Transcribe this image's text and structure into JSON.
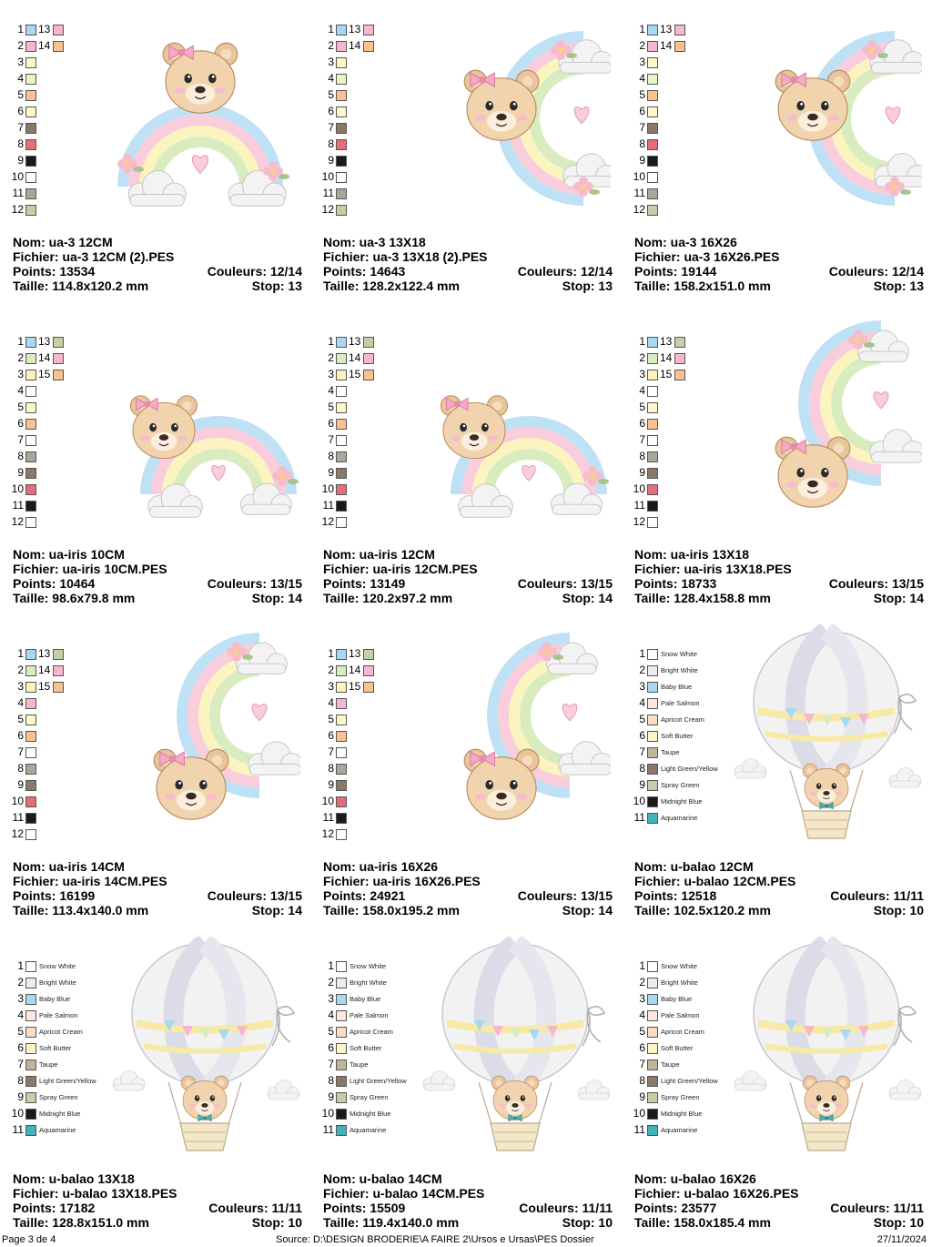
{
  "palettes": {
    "rainbow3": [
      "#a9d8f2",
      "#f4b7cf",
      "#fdf9c6",
      "#eaf5c5",
      "#f8c18e",
      "#fdf8c9",
      "#8b7867",
      "#e56c78",
      "#1a1a1a",
      "#ffffff",
      "#a8a89a",
      "#c2cfa7"
    ],
    "rainbow3_right": [
      "#f4b7cf",
      "#f8c18e"
    ],
    "iris_a": [
      "#a9d8f2",
      "#d8ecc0",
      "#fdf2b9",
      "#ffffff",
      "#fdf8c9",
      "#f8c18e",
      "#ffffff",
      "#a8a89a",
      "#8b7867",
      "#e56c78",
      "#1a1a1a",
      "#ffffff"
    ],
    "iris_a_right": [
      "#c2cfa7",
      "#f4b7cf",
      "#f8c18e"
    ],
    "iris_b": [
      "#a9d8f2",
      "#d8ecc0",
      "#fdf2b9",
      "#f4b7cf",
      "#fdf8c9",
      "#f8c18e",
      "#ffffff",
      "#a8a89a",
      "#8b7867",
      "#e56c78",
      "#1a1a1a",
      "#ffffff"
    ],
    "iris_b_right": [
      "#c2cfa7",
      "#f4b7cf",
      "#f8c18e"
    ],
    "balao": [
      "#ffffff",
      "#ecebf4",
      "#a9d8f2",
      "#fde6de",
      "#fbdcc4",
      "#fdf4c6",
      "#c2b39b",
      "#8b7867",
      "#c2cfa7",
      "#1a1a1a",
      "#3fb3b5"
    ]
  },
  "balao_names": [
    "Snow White",
    "Bright White",
    "Baby Blue",
    "Pale Salmon",
    "Apricot Cream",
    "Soft Butter",
    "Taupe",
    "Light Green/Yellow",
    "Spray Green",
    "Midnight Blue",
    "Aquamarine"
  ],
  "designs": [
    {
      "nom_line": "Nom: ua-3 12CM",
      "fichier_line": "Fichier: ua-3 12CM (2).PES",
      "points_line": "Points: 13534",
      "couleurs_line": "Couleurs: 12/14",
      "taille_line": "Taille: 114.8x120.2 mm",
      "stop_line": "Stop: 13",
      "art": "rainbow-bear-top",
      "palette": "rainbow3",
      "right": "rainbow3_right",
      "right_start": 13
    },
    {
      "nom_line": "Nom: ua-3 13X18",
      "fichier_line": "Fichier: ua-3 13X18 (2).PES",
      "points_line": "Points: 14643",
      "couleurs_line": "Couleurs: 12/14",
      "taille_line": "Taille: 128.2x122.4 mm",
      "stop_line": "Stop: 13",
      "art": "rainbow-bear-side",
      "palette": "rainbow3",
      "right": "rainbow3_right",
      "right_start": 13
    },
    {
      "nom_line": "Nom: ua-3 16X26",
      "fichier_line": "Fichier: ua-3 16X26.PES",
      "points_line": "Points: 19144",
      "couleurs_line": "Couleurs: 12/14",
      "taille_line": "Taille: 158.2x151.0 mm",
      "stop_line": "Stop: 13",
      "art": "rainbow-bear-side",
      "palette": "rainbow3",
      "right": "rainbow3_right",
      "right_start": 13
    },
    {
      "nom_line": "Nom: ua-iris 10CM",
      "fichier_line": "Fichier: ua-iris 10CM.PES",
      "points_line": "Points: 10464",
      "couleurs_line": "Couleurs: 13/15",
      "taille_line": "Taille: 98.6x79.8 mm",
      "stop_line": "Stop: 14",
      "art": "rainbow-bear-left",
      "palette": "iris_a",
      "right": "iris_a_right",
      "right_start": 13
    },
    {
      "nom_line": "Nom: ua-iris 12CM",
      "fichier_line": "Fichier: ua-iris 12CM.PES",
      "points_line": "Points: 13149",
      "couleurs_line": "Couleurs: 13/15",
      "taille_line": "Taille: 120.2x97.2 mm",
      "stop_line": "Stop: 14",
      "art": "rainbow-bear-left",
      "palette": "iris_a",
      "right": "iris_a_right",
      "right_start": 13
    },
    {
      "nom_line": "Nom: ua-iris 13X18",
      "fichier_line": "Fichier: ua-iris 13X18.PES",
      "points_line": "Points: 18733",
      "couleurs_line": "Couleurs: 13/15",
      "taille_line": "Taille: 128.4x158.8 mm",
      "stop_line": "Stop: 14",
      "art": "rainbow-bear-bottom",
      "palette": "iris_a",
      "right": "iris_a_right",
      "right_start": 13
    },
    {
      "nom_line": "Nom: ua-iris 14CM",
      "fichier_line": "Fichier: ua-iris 14CM.PES",
      "points_line": "Points: 16199",
      "couleurs_line": "Couleurs: 13/15",
      "taille_line": "Taille: 113.4x140.0 mm",
      "stop_line": "Stop: 14",
      "art": "rainbow-bear-bottom",
      "palette": "iris_b",
      "right": "iris_b_right",
      "right_start": 13
    },
    {
      "nom_line": "Nom: ua-iris 16X26",
      "fichier_line": "Fichier: ua-iris 16X26.PES",
      "points_line": "Points: 24921",
      "couleurs_line": "Couleurs: 13/15",
      "taille_line": "Taille: 158.0x195.2 mm",
      "stop_line": "Stop: 14",
      "art": "rainbow-bear-bottom",
      "palette": "iris_b",
      "right": "iris_b_right",
      "right_start": 13
    },
    {
      "nom_line": "Nom: u-balao 12CM",
      "fichier_line": "Fichier: u-balao 12CM.PES",
      "points_line": "Points: 12518",
      "couleurs_line": "Couleurs: 11/11",
      "taille_line": "Taille: 102.5x120.2 mm",
      "stop_line": "Stop: 10",
      "art": "balloon-bear",
      "palette": "balao",
      "right": null,
      "right_start": 0
    },
    {
      "nom_line": "Nom: u-balao 13X18",
      "fichier_line": "Fichier: u-balao 13X18.PES",
      "points_line": "Points: 17182",
      "couleurs_line": "Couleurs: 11/11",
      "taille_line": "Taille: 128.8x151.0 mm",
      "stop_line": "Stop: 10",
      "art": "balloon-bear",
      "palette": "balao",
      "right": null,
      "right_start": 0
    },
    {
      "nom_line": "Nom: u-balao 14CM",
      "fichier_line": "Fichier: u-balao 14CM.PES",
      "points_line": "Points: 15509",
      "couleurs_line": "Couleurs: 11/11",
      "taille_line": "Taille: 119.4x140.0 mm",
      "stop_line": "Stop: 10",
      "art": "balloon-bear",
      "palette": "balao",
      "right": null,
      "right_start": 0
    },
    {
      "nom_line": "Nom: u-balao 16X26",
      "fichier_line": "Fichier: u-balao 16X26.PES",
      "points_line": "Points: 23577",
      "couleurs_line": "Couleurs: 11/11",
      "taille_line": "Taille: 158.0x185.4 mm",
      "stop_line": "Stop: 10",
      "art": "balloon-bear",
      "palette": "balao",
      "right": null,
      "right_start": 0
    }
  ],
  "footer": {
    "page": "Page 3 de 4",
    "source": "Source: D:\\DESIGN BRODERIE\\A FAIRE 2\\Ursos e Ursas\\PES Dossier",
    "date": "27/11/2024"
  }
}
